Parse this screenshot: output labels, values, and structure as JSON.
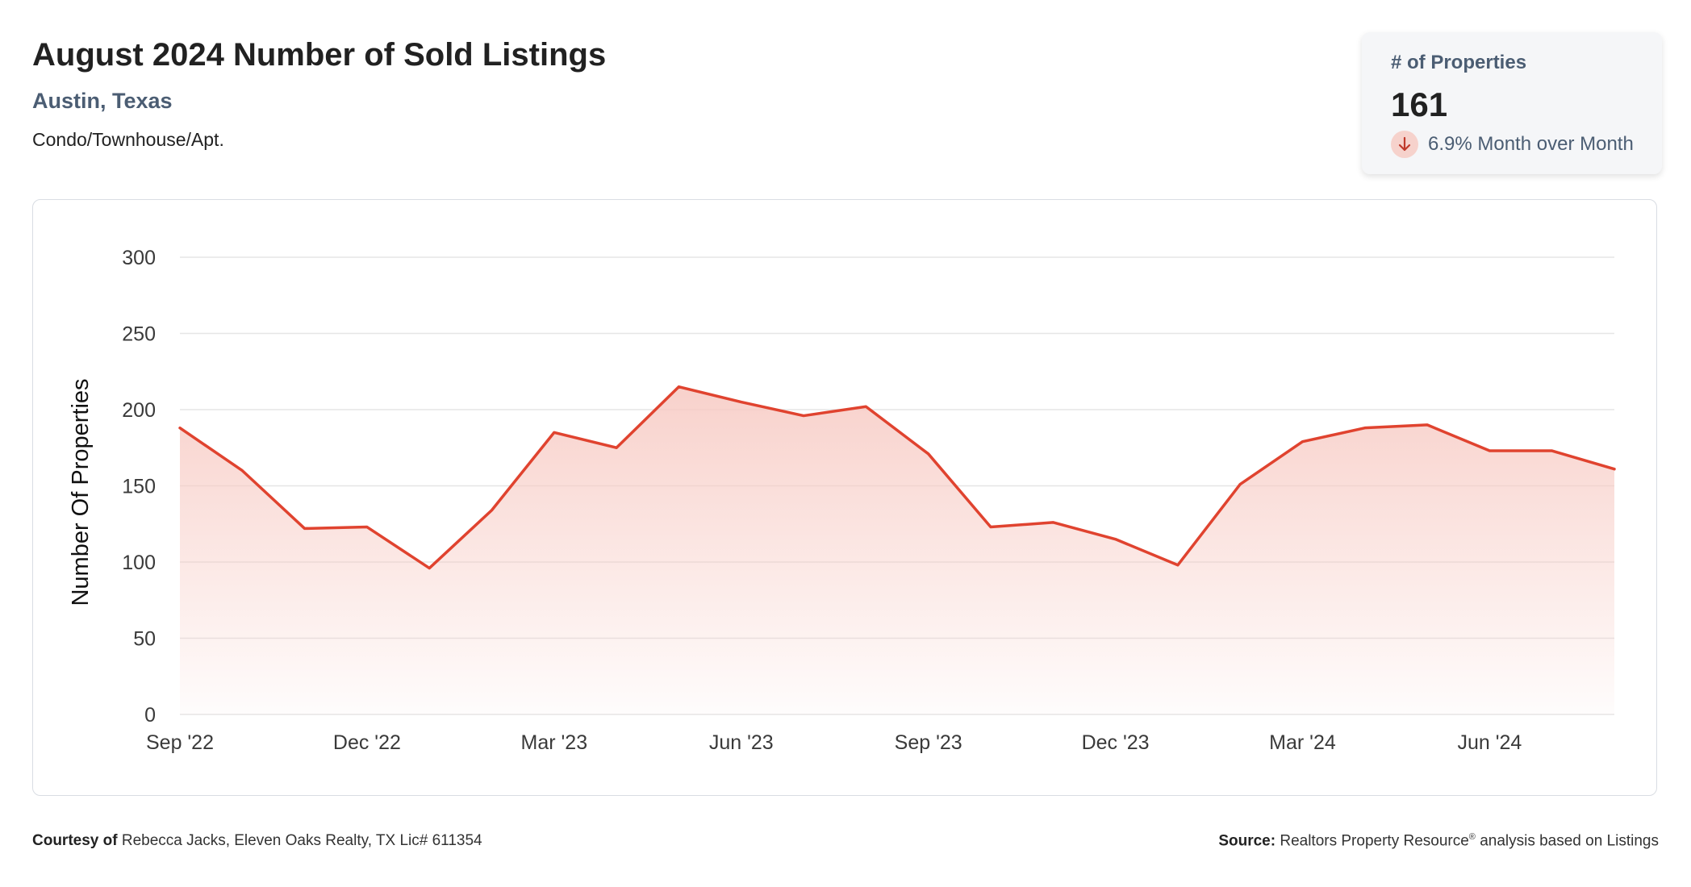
{
  "header": {
    "title": "August 2024 Number of Sold Listings",
    "location": "Austin, Texas",
    "property_type": "Condo/Townhouse/Apt."
  },
  "stat_card": {
    "label": "# of Properties",
    "value": "161",
    "change_text": "6.9% Month over Month",
    "direction_icon": "arrow-down-icon"
  },
  "colors": {
    "line": "#e0432f",
    "fill_top": "#f7c9c2",
    "grid": "#e6e6e6",
    "badge": "#f6d2cc"
  },
  "chart_data": {
    "type": "area",
    "x": [
      "Sep '22",
      "Oct '22",
      "Nov '22",
      "Dec '22",
      "Jan '23",
      "Feb '23",
      "Mar '23",
      "Apr '23",
      "May '23",
      "Jun '23",
      "Jul '23",
      "Aug '23",
      "Sep '23",
      "Oct '23",
      "Nov '23",
      "Dec '23",
      "Jan '24",
      "Feb '24",
      "Mar '24",
      "Apr '24",
      "May '24",
      "Jun '24",
      "Jul '24",
      "Aug '24"
    ],
    "xticks": [
      "Sep '22",
      "Dec '22",
      "Mar '23",
      "Jun '23",
      "Sep '23",
      "Dec '23",
      "Mar '24",
      "Jun '24"
    ],
    "series": [
      {
        "values": [
          188,
          160,
          122,
          123,
          96,
          134,
          185,
          175,
          215,
          205,
          196,
          202,
          171,
          123,
          126,
          115,
          98,
          151,
          179,
          188,
          190,
          173,
          173,
          161
        ]
      }
    ],
    "ylabel": "Number Of Properties",
    "ylim": [
      0,
      300
    ],
    "yticks": [
      0,
      50,
      100,
      150,
      200,
      250,
      300
    ],
    "grid": true
  },
  "footer": {
    "courtesy_label": "Courtesy of",
    "courtesy_text": "Rebecca Jacks, Eleven Oaks Realty, TX Lic# 611354",
    "source_label": "Source:",
    "source_text_1": "Realtors Property Resource",
    "source_sup": "®",
    "source_text_2": "analysis based on Listings"
  }
}
